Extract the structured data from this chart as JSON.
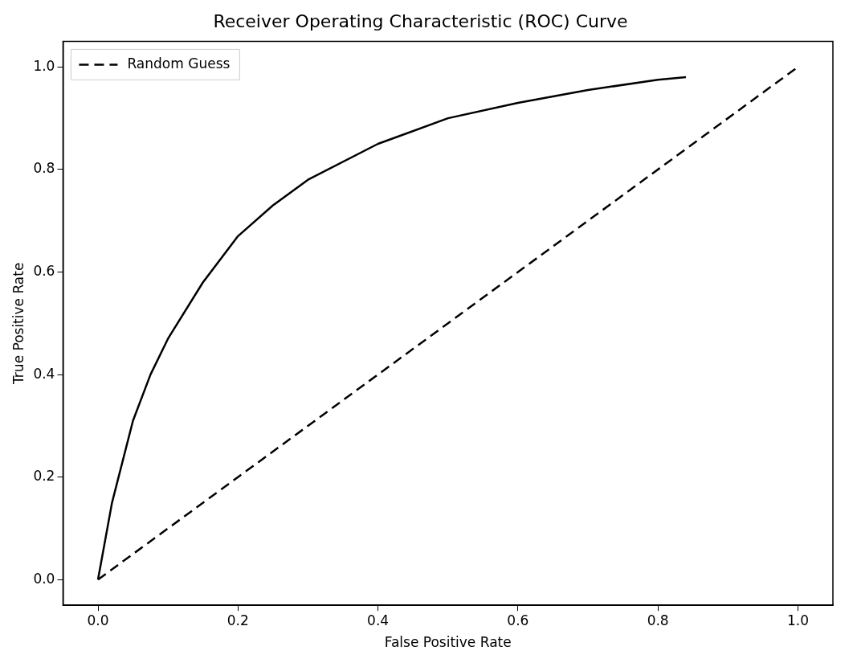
{
  "chart_data": {
    "type": "line",
    "title": "Receiver Operating Characteristic (ROC) Curve",
    "xlabel": "False Positive Rate",
    "ylabel": "True Positive Rate",
    "series": [
      {
        "color": "#000000",
        "line_style": "solid",
        "x": [
          0,
          0.02,
          0.05,
          0.075,
          0.1,
          0.15,
          0.2,
          0.25,
          0.3,
          0.4,
          0.5,
          0.6,
          0.7,
          0.8,
          0.84
        ],
        "values": [
          0,
          0.15,
          0.31,
          0.4,
          0.47,
          0.58,
          0.67,
          0.73,
          0.78,
          0.85,
          0.9,
          0.93,
          0.955,
          0.975,
          0.98
        ]
      },
      {
        "name": "Random Guess",
        "color": "#000000",
        "line_style": "dashed",
        "x": [
          0,
          1
        ],
        "values": [
          0,
          1
        ]
      }
    ],
    "xlim": [
      -0.05,
      1.05
    ],
    "ylim": [
      -0.05,
      1.05
    ],
    "xticks": [
      {
        "value": 0,
        "label": "0.0"
      },
      {
        "value": 0.2,
        "label": "0.2"
      },
      {
        "value": 0.4,
        "label": "0.4"
      },
      {
        "value": 0.6,
        "label": "0.6"
      },
      {
        "value": 0.8,
        "label": "0.8"
      },
      {
        "value": 1,
        "label": "1.0"
      }
    ],
    "yticks": [
      {
        "value": 0,
        "label": "0.0"
      },
      {
        "value": 0.2,
        "label": "0.2"
      },
      {
        "value": 0.4,
        "label": "0.4"
      },
      {
        "value": 0.6,
        "label": "0.6"
      },
      {
        "value": 0.8,
        "label": "0.8"
      },
      {
        "value": 1,
        "label": "1.0"
      }
    ],
    "grid": false,
    "legend": "top left",
    "marker": "none"
  }
}
